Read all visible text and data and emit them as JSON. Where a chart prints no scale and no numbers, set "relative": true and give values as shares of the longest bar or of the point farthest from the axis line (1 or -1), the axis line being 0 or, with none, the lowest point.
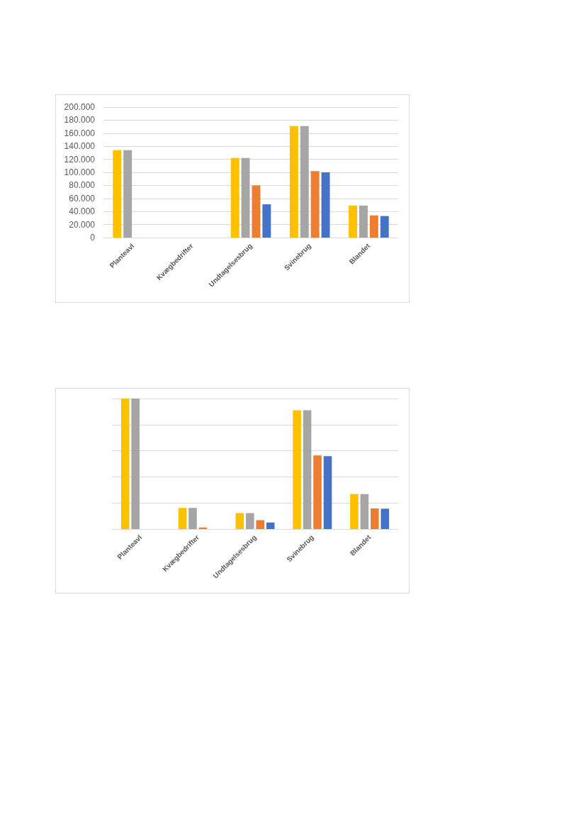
{
  "chart_data": [
    {
      "type": "bar",
      "categories": [
        "Planteavl",
        "Kvægbedrifter",
        "Undtagelsesbrug",
        "Svinebrug",
        "Blandet"
      ],
      "series": [
        {
          "color": "#ffc000",
          "values": [
            134000,
            null,
            122000,
            171000,
            49000
          ]
        },
        {
          "color": "#a5a5a5",
          "values": [
            134000,
            null,
            122000,
            171000,
            49000
          ]
        },
        {
          "color": "#ed7d31",
          "values": [
            null,
            null,
            80000,
            102000,
            34000
          ]
        },
        {
          "color": "#4472c4",
          "values": [
            null,
            null,
            51000,
            100000,
            33000
          ]
        }
      ],
      "ylim": [
        0,
        200000
      ],
      "yticks": [
        0,
        {
          "value": 20000,
          "label": "20.000"
        },
        {
          "value": 40000,
          "label": "40.000"
        },
        {
          "value": 60000,
          "label": "60.000"
        },
        {
          "value": 80000,
          "label": "80.000"
        },
        {
          "value": 100000,
          "label": "100.000"
        },
        {
          "value": 120000,
          "label": "120.000"
        },
        {
          "value": 140000,
          "label": "140.000"
        },
        {
          "value": 160000,
          "label": "160.000"
        },
        {
          "value": 180000,
          "label": "180.000"
        },
        {
          "value": 200000,
          "label": "200.000"
        }
      ],
      "grid": "y"
    },
    {
      "type": "bar",
      "relative": true,
      "categories": [
        "Planteavl",
        "Kvægbedrifter",
        "Undtagelsesbrug",
        "Svinebrug",
        "Blandet"
      ],
      "series": [
        {
          "color": "#ffc000",
          "values": [
            1,
            0.162,
            0.122,
            0.911,
            0.268
          ]
        },
        {
          "color": "#a5a5a5",
          "values": [
            1,
            0.162,
            0.122,
            0.911,
            0.268
          ]
        },
        {
          "color": "#ed7d31",
          "values": [
            null,
            0.012,
            0.068,
            0.564,
            0.158
          ]
        },
        {
          "color": "#4472c4",
          "values": [
            null,
            null,
            0.05,
            0.558,
            0.156
          ]
        }
      ],
      "grid": "y"
    }
  ]
}
